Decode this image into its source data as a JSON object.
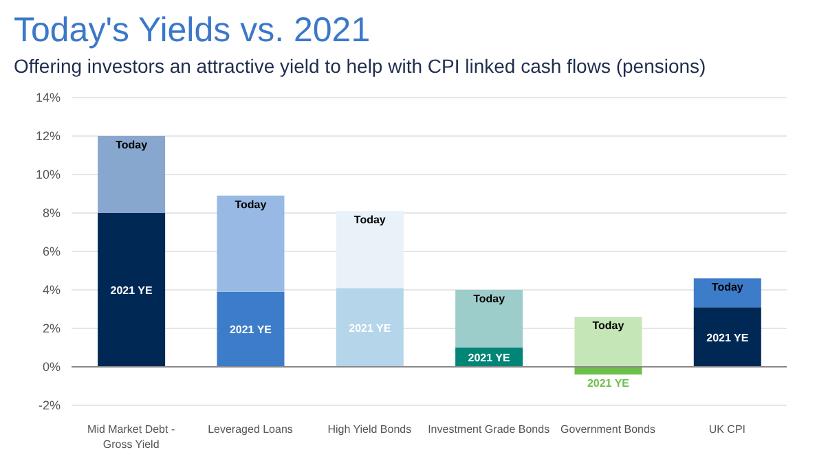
{
  "chart_data": {
    "type": "bar",
    "title": "Today's Yields vs. 2021",
    "subtitle": "Offering investors an attractive yield to help with CPI linked cash flows (pensions)",
    "categories": [
      "Mid Market Debt - Gross Yield",
      "Leveraged Loans",
      "High Yield Bonds",
      "Investment Grade Bonds",
      "Government Bonds",
      "UK CPI"
    ],
    "stacked": true,
    "series": [
      {
        "name": "2021 YE",
        "colors": [
          "#002855",
          "#3d7cc9",
          "#b4d5ea",
          "#008577",
          "#6cc04a",
          "#002855"
        ],
        "values": [
          8,
          3.9,
          4.1,
          1.0,
          -0.4,
          3.1
        ]
      },
      {
        "name": "Today",
        "colors": [
          "#87a7cf",
          "#98b9e3",
          "#e9f1f9",
          "#9dcdcb",
          "#c5e6b6",
          "#3d7cc9"
        ],
        "values": [
          4,
          5,
          4,
          3,
          2.6,
          1.5
        ]
      }
    ],
    "ylim": [
      -2,
      14
    ],
    "yticks": [
      {
        "value": -2,
        "label": "-2%"
      },
      {
        "value": 0,
        "label": "0%"
      },
      {
        "value": 2,
        "label": "2%"
      },
      {
        "value": 4,
        "label": "4%"
      },
      {
        "value": 6,
        "label": "6%"
      },
      {
        "value": 8,
        "label": "8%"
      },
      {
        "value": 10,
        "label": "10%"
      },
      {
        "value": 12,
        "label": "12%"
      },
      {
        "value": 14,
        "label": "14%"
      }
    ],
    "grid": "y",
    "legend": false
  }
}
